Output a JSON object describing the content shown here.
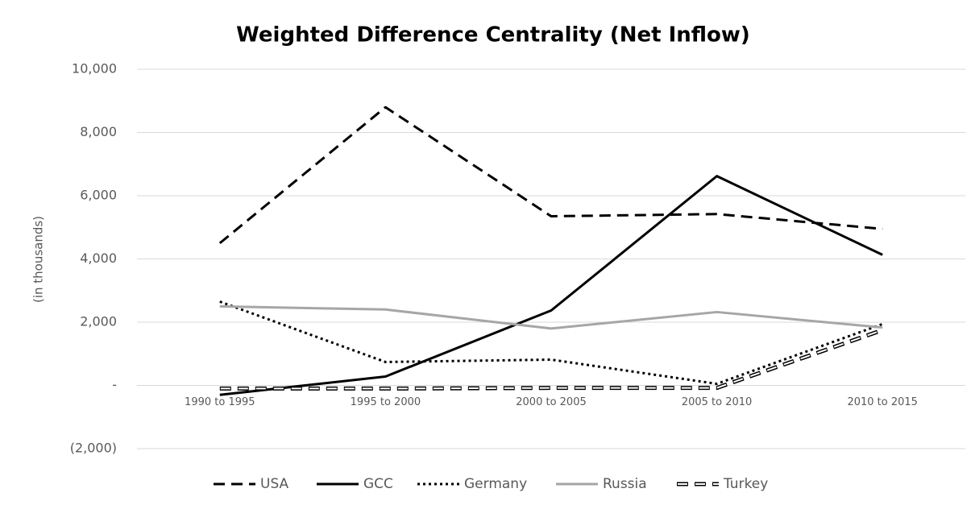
{
  "chart_data": {
    "type": "line",
    "title": "Weighted Difference Centrality (Net Inflow)",
    "y_label": "(in thousands)",
    "categories": [
      "1990 to 1995",
      "1995 to 2000",
      "2000 to 2005",
      "2005 to 2010",
      "2010 to 2015"
    ],
    "series": [
      {
        "name": "USA",
        "color": "#000000",
        "style": "dashed",
        "values": [
          4500,
          8800,
          5350,
          5420,
          4950
        ]
      },
      {
        "name": "GCC",
        "color": "#000000",
        "style": "solid",
        "values": [
          -300,
          280,
          2370,
          6620,
          4130
        ]
      },
      {
        "name": "Germany",
        "color": "#000000",
        "style": "dotted",
        "values": [
          2650,
          740,
          815,
          50,
          1940
        ]
      },
      {
        "name": "Russia",
        "color": "#a6a6a6",
        "style": "solid",
        "values": [
          2500,
          2400,
          1800,
          2320,
          1830
        ]
      },
      {
        "name": "Turkey",
        "color": "#000000",
        "style": "double-dashed",
        "values": [
          -100,
          -100,
          -80,
          -80,
          1750
        ]
      }
    ],
    "ylim": [
      -2000,
      10000
    ],
    "yticks": [
      {
        "value": -2000,
        "label": "(2,000)"
      },
      {
        "value": 0,
        "label": "-"
      },
      {
        "value": 2000,
        "label": "2,000"
      },
      {
        "value": 4000,
        "label": "4,000"
      },
      {
        "value": 6000,
        "label": "6,000"
      },
      {
        "value": 8000,
        "label": "8,000"
      },
      {
        "value": 10000,
        "label": "10,000"
      }
    ],
    "grid": true,
    "legend": "bottom"
  }
}
